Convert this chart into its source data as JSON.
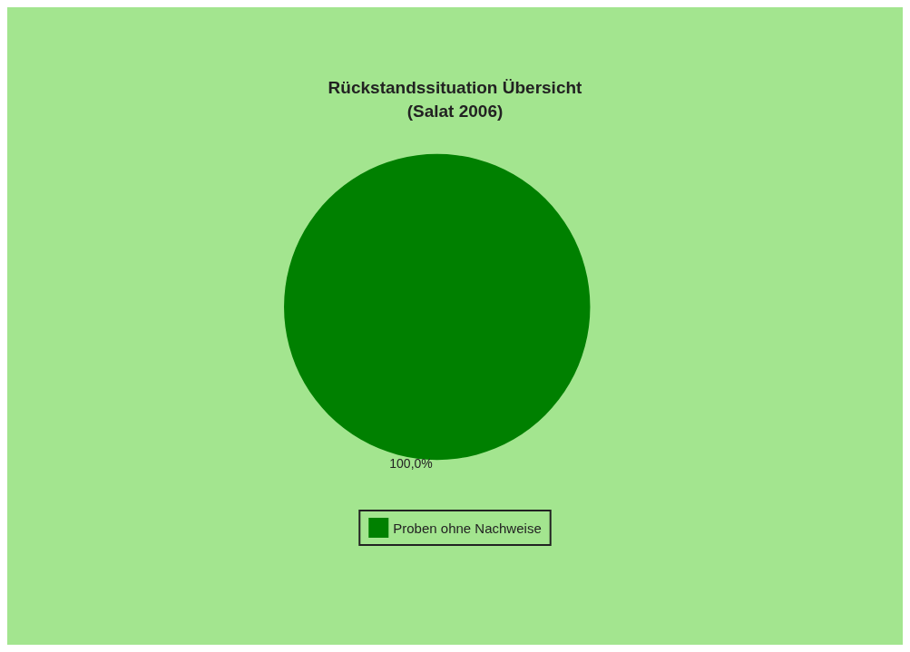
{
  "chart_data": {
    "type": "pie",
    "title": "Rückstandssituation Übersicht\n(Salat 2006)",
    "categories": [
      "Proben ohne Nachweise"
    ],
    "values": [
      100
    ],
    "colors": [
      "#008000"
    ],
    "value_labels": [
      "100,0%"
    ],
    "legend": "bottom"
  }
}
